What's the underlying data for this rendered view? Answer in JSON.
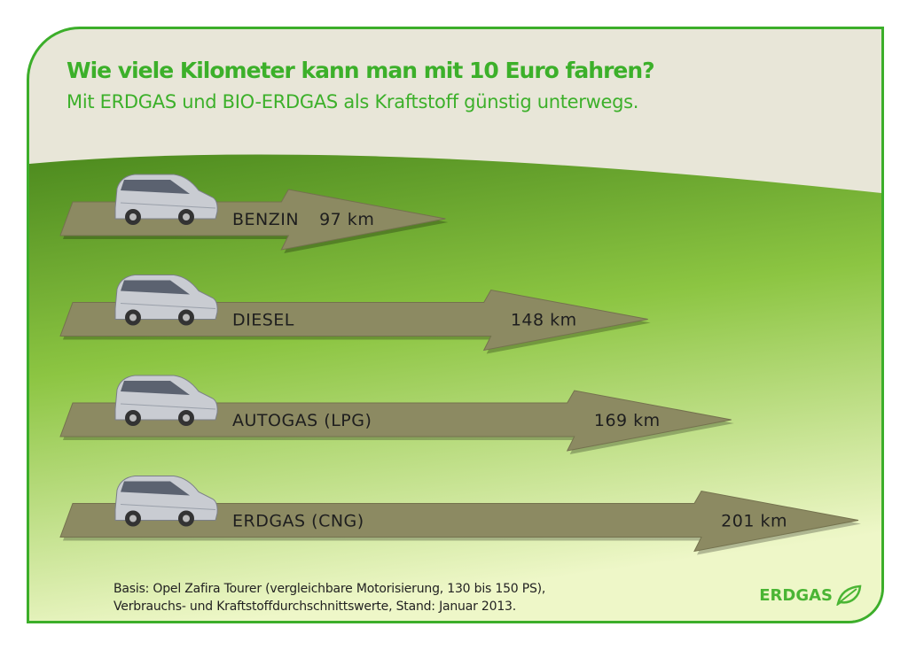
{
  "title": "Wie viele Kilometer kann man mit 10 Euro fahren?",
  "subtitle": "Mit ERDGAS und BIO-ERDGAS als Kraftstoff günstig unterwegs.",
  "footnote": [
    "Basis: Opel Zafira Tourer (vergleichbare Motorisierung, 130 bis 150 PS),",
    "Verbrauchs- und Kraftstoffdurchschnittswerte, Stand: Januar 2013."
  ],
  "logo": "ERDGAS",
  "colors": {
    "brand": "#3cae2a",
    "arrow": "#8c8a62",
    "beige": "#e8e6d8"
  },
  "chart_data": {
    "type": "bar",
    "orientation": "horizontal",
    "title": "Wie viele Kilometer kann man mit 10 Euro fahren?",
    "unit": "km",
    "categories": [
      "BENZIN",
      "DIESEL",
      "AUTOGAS (LPG)",
      "ERDGAS (CNG)"
    ],
    "values": [
      97,
      148,
      169,
      201
    ],
    "value_labels": [
      "97 km",
      "148 km",
      "169 km",
      "201 km"
    ]
  }
}
